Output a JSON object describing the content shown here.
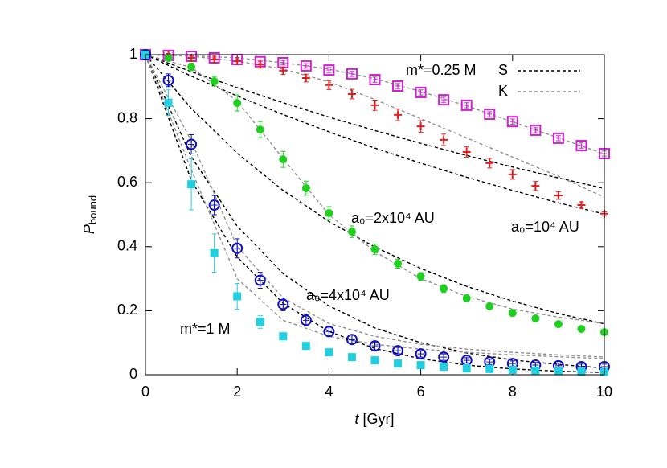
{
  "chart_data": {
    "type": "scatter",
    "x_label_symbol": "t",
    "x_label_unit": "[Gyr]",
    "y_label_symbol": "P",
    "y_label_subscript": "bound",
    "xlim": [
      0,
      10
    ],
    "ylim": [
      0,
      1
    ],
    "xticks": [
      0,
      2,
      4,
      6,
      8,
      10
    ],
    "yticks": [
      0,
      0.2,
      0.4,
      0.6,
      0.8,
      1
    ],
    "x": [
      0,
      0.5,
      1,
      1.5,
      2,
      2.5,
      3,
      3.5,
      4,
      4.5,
      5,
      5.5,
      6,
      6.5,
      7,
      7.5,
      8,
      8.5,
      9,
      9.5,
      10
    ],
    "series": [
      {
        "marker": "open-square",
        "color": "#d020d0",
        "values": [
          1,
          0.998,
          0.995,
          0.99,
          0.985,
          0.978,
          0.975,
          0.965,
          0.952,
          0.94,
          0.922,
          0.902,
          0.882,
          0.859,
          0.842,
          0.814,
          0.791,
          0.764,
          0.739,
          0.716,
          0.691
        ],
        "errors": [
          0.005,
          0.005,
          0.005,
          0.005,
          0.006,
          0.006,
          0.007,
          0.007,
          0.008,
          0.008,
          0.008,
          0.008,
          0.008,
          0.008,
          0.008,
          0.008,
          0.008,
          0.008,
          0.008,
          0.008,
          0.008
        ]
      },
      {
        "marker": "plus",
        "color": "#e02020",
        "values": [
          1,
          0.998,
          0.99,
          0.985,
          0.98,
          0.97,
          0.95,
          0.927,
          0.905,
          0.877,
          0.842,
          0.812,
          0.776,
          0.734,
          0.696,
          0.661,
          0.626,
          0.59,
          0.56,
          0.53,
          0.503
        ],
        "errors": [
          0.005,
          0.006,
          0.008,
          0.01,
          0.01,
          0.012,
          0.012,
          0.012,
          0.014,
          0.015,
          0.016,
          0.018,
          0.018,
          0.018,
          0.016,
          0.015,
          0.015,
          0.014,
          0.012,
          0.01,
          0.006
        ]
      },
      {
        "marker": "filled-circle",
        "color": "#20d020",
        "values": [
          1,
          0.99,
          0.962,
          0.917,
          0.849,
          0.766,
          0.673,
          0.583,
          0.505,
          0.447,
          0.392,
          0.347,
          0.307,
          0.269,
          0.239,
          0.214,
          0.193,
          0.176,
          0.158,
          0.143,
          0.133
        ],
        "errors": [
          0.005,
          0.008,
          0.012,
          0.015,
          0.025,
          0.025,
          0.025,
          0.022,
          0.02,
          0.018,
          0.016,
          0.014,
          0.012,
          0.012,
          0.01,
          0.008,
          0.006,
          0.005,
          0.005,
          0.005,
          0.005
        ]
      },
      {
        "marker": "open-circle",
        "color": "#1010c0",
        "values": [
          1,
          0.92,
          0.72,
          0.53,
          0.395,
          0.295,
          0.22,
          0.17,
          0.135,
          0.11,
          0.09,
          0.075,
          0.065,
          0.055,
          0.045,
          0.04,
          0.035,
          0.03,
          0.028,
          0.025,
          0.025
        ],
        "errors": [
          0.005,
          0.02,
          0.03,
          0.03,
          0.03,
          0.025,
          0.02,
          0.018,
          0.016,
          0.014,
          0.012,
          0.01,
          0.01,
          0.01,
          0.008,
          0.008,
          0.008,
          0.008,
          0.008,
          0.008,
          0.008
        ]
      },
      {
        "marker": "filled-square",
        "color": "#20d0e0",
        "values": [
          1,
          0.85,
          0.595,
          0.38,
          0.245,
          0.165,
          0.12,
          0.09,
          0.07,
          0.055,
          0.045,
          0.035,
          0.03,
          0.025,
          0.02,
          0.018,
          0.015,
          0.013,
          0.011,
          0.01,
          0.009
        ],
        "errors": [
          0.005,
          0.04,
          0.08,
          0.06,
          0.04,
          0.02,
          0.01,
          0.008,
          0.006,
          0.006,
          0.005,
          0.005,
          0.005,
          0.005,
          0.005,
          0.005,
          0.005,
          0.005,
          0.005,
          0.005,
          0.005
        ]
      }
    ],
    "curve_x": [
      0,
      1,
      2,
      3,
      4,
      5,
      6,
      7,
      8,
      9,
      10
    ],
    "legend": [
      {
        "name": "S",
        "color": "#000000"
      },
      {
        "name": "K",
        "color": "#909090"
      }
    ],
    "curves": [
      {
        "legend": 0,
        "values": [
          1,
          0.947,
          0.897,
          0.85,
          0.805,
          0.763,
          0.723,
          0.685,
          0.649,
          0.615,
          0.582
        ]
      },
      {
        "legend": 0,
        "values": [
          1,
          0.933,
          0.871,
          0.813,
          0.759,
          0.708,
          0.661,
          0.617,
          0.576,
          0.537,
          0.502
        ]
      },
      {
        "legend": 0,
        "values": [
          1,
          0.832,
          0.692,
          0.576,
          0.479,
          0.399,
          0.332,
          0.276,
          0.23,
          0.191,
          0.159
        ]
      },
      {
        "legend": 0,
        "values": [
          1,
          0.681,
          0.464,
          0.316,
          0.215,
          0.146,
          0.1,
          0.068,
          0.046,
          0.032,
          0.021
        ]
      },
      {
        "legend": 0,
        "values": [
          1,
          0.607,
          0.368,
          0.223,
          0.135,
          0.082,
          0.05,
          0.03,
          0.018,
          0.011,
          0.007
        ]
      },
      {
        "legend": 1,
        "values": [
          1,
          0.997,
          0.99,
          0.975,
          0.955,
          0.925,
          0.885,
          0.84,
          0.79,
          0.74,
          0.69
        ]
      },
      {
        "legend": 1,
        "values": [
          1,
          0.995,
          0.98,
          0.955,
          0.915,
          0.86,
          0.8,
          0.74,
          0.68,
          0.62,
          0.555
        ]
      },
      {
        "legend": 1,
        "values": [
          1,
          0.96,
          0.855,
          0.675,
          0.5,
          0.385,
          0.3,
          0.245,
          0.205,
          0.18,
          0.16
        ]
      },
      {
        "legend": 1,
        "values": [
          1,
          0.73,
          0.4,
          0.24,
          0.16,
          0.12,
          0.095,
          0.08,
          0.07,
          0.062,
          0.055
        ]
      },
      {
        "legend": 1,
        "values": [
          1,
          0.64,
          0.3,
          0.17,
          0.12,
          0.095,
          0.08,
          0.07,
          0.062,
          0.056,
          0.05
        ]
      }
    ],
    "annotations": [
      "m*=0.25 M",
      "a₀=2x10⁴ AU",
      "a₀=10⁴ AU",
      "a₀=4x10⁴ AU",
      "m*=1 M"
    ]
  }
}
